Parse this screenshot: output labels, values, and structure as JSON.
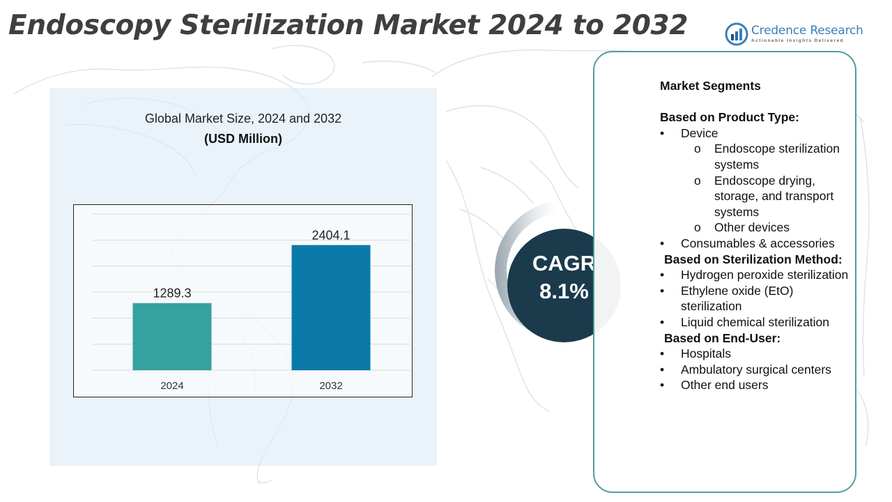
{
  "title": "Endoscopy Sterilization Market 2024 to 2032",
  "logo": {
    "name": "Credence Research",
    "tagline": "Actionable Insights Delivered"
  },
  "chart": {
    "title": "Global Market Size, 2024 and 2032",
    "subtitle": "(USD Million)"
  },
  "chart_data": {
    "type": "bar",
    "title": "Global Market Size, 2024 and 2032",
    "subtitle": "(USD Million)",
    "categories": [
      "2024",
      "2032"
    ],
    "values": [
      1289.3,
      2404.1
    ],
    "value_labels": [
      "1289.3",
      "2404.1"
    ],
    "ylim": [
      0,
      3000
    ],
    "grid": true,
    "bar_colors": [
      "#35a2a0",
      "#0b79a8"
    ]
  },
  "cagr": {
    "label": "CAGR",
    "value": "8.1%"
  },
  "segments": {
    "heading": "Market Segments",
    "product_type": {
      "heading": "Based on Product Type:",
      "device": "Device",
      "sub_items": [
        "Endoscope sterilization systems",
        "Endoscope drying, storage, and transport systems",
        "Other devices"
      ],
      "consumables": "Consumables & accessories"
    },
    "method": {
      "heading": "Based on Sterilization Method:",
      "items": [
        "Hydrogen peroxide sterilization",
        "Ethylene oxide (EtO) sterilization",
        "Liquid chemical sterilization"
      ]
    },
    "end_user": {
      "heading": "Based on End-User:",
      "items": [
        "Hospitals",
        "Ambulatory surgical centers",
        "Other end users"
      ]
    },
    "bullet": "•",
    "sub_bullet": "o"
  },
  "colors": {
    "title": "#3f3f3f",
    "bar_2024": "#35a2a0",
    "bar_2032": "#0b79a8",
    "cagr_circle": "#1b3a4c",
    "box_border": "#4d9e9b",
    "brand": "#3a7fb8"
  }
}
